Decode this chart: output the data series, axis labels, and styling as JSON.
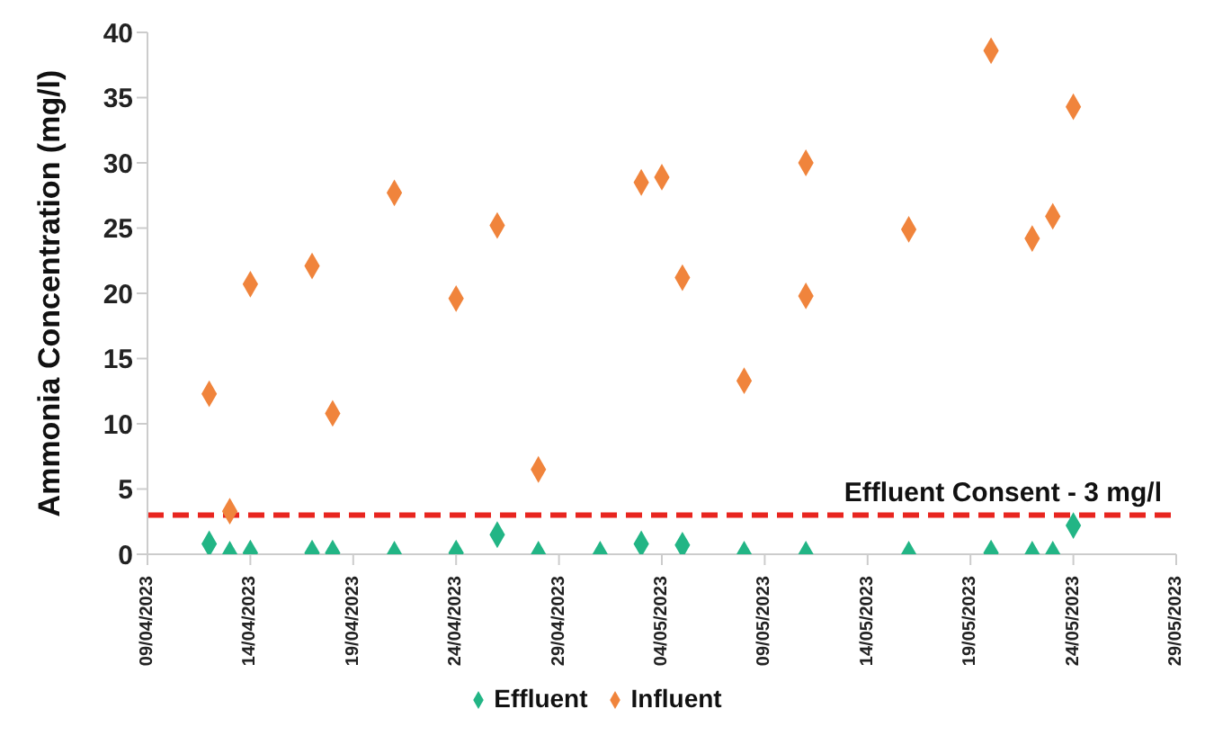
{
  "chart_data": {
    "type": "scatter",
    "ylabel": "Ammonia Concentration (mg/l)",
    "xlim": [
      "2023-04-09",
      "2023-05-29"
    ],
    "xticks": [
      {
        "value": "2023-04-09",
        "label": "09/04/2023"
      },
      {
        "value": "2023-04-14",
        "label": "14/04/2023"
      },
      {
        "value": "2023-04-19",
        "label": "19/04/2023"
      },
      {
        "value": "2023-04-24",
        "label": "24/04/2023"
      },
      {
        "value": "2023-04-29",
        "label": "29/04/2023"
      },
      {
        "value": "2023-05-04",
        "label": "04/05/2023"
      },
      {
        "value": "2023-05-09",
        "label": "09/05/2023"
      },
      {
        "value": "2023-05-14",
        "label": "14/05/2023"
      },
      {
        "value": "2023-05-19",
        "label": "19/05/2023"
      },
      {
        "value": "2023-05-24",
        "label": "24/05/2023"
      },
      {
        "value": "2023-05-29",
        "label": "29/05/2023"
      }
    ],
    "ylim": [
      0,
      40
    ],
    "yticks": [
      0,
      5,
      10,
      15,
      20,
      25,
      30,
      35,
      40
    ],
    "series": [
      {
        "name": "Influent",
        "color": "#f0843c",
        "x": [
          "2023-04-12",
          "2023-04-13",
          "2023-04-14",
          "2023-04-17",
          "2023-04-18",
          "2023-04-21",
          "2023-04-24",
          "2023-04-26",
          "2023-04-28",
          "2023-05-03",
          "2023-05-04",
          "2023-05-05",
          "2023-05-08",
          "2023-05-11",
          "2023-05-11",
          "2023-05-16",
          "2023-05-20",
          "2023-05-22",
          "2023-05-23",
          "2023-05-24"
        ],
        "values": [
          12.3,
          3.3,
          20.7,
          22.1,
          10.8,
          27.7,
          19.6,
          25.2,
          6.5,
          28.5,
          28.9,
          21.2,
          13.3,
          30.0,
          19.8,
          24.9,
          38.6,
          24.2,
          25.9,
          34.3
        ]
      },
      {
        "name": "Effluent",
        "color": "#22b585",
        "x": [
          "2023-04-12",
          "2023-04-13",
          "2023-04-14",
          "2023-04-17",
          "2023-04-18",
          "2023-04-21",
          "2023-04-24",
          "2023-04-26",
          "2023-04-28",
          "2023-05-01",
          "2023-05-03",
          "2023-05-05",
          "2023-05-08",
          "2023-05-11",
          "2023-05-16",
          "2023-05-20",
          "2023-05-22",
          "2023-05-23",
          "2023-05-24"
        ],
        "values": [
          0.8,
          0,
          0.1,
          0.1,
          0.1,
          0,
          0.1,
          1.5,
          0,
          0,
          0.8,
          0.7,
          0,
          0,
          0,
          0.1,
          0,
          0,
          2.2
        ]
      }
    ],
    "ref_lines": [
      {
        "axis": "y",
        "value": 3,
        "label": "Effluent Consent - 3 mg/l",
        "color": "#e8251f",
        "line_style": "dashed"
      }
    ],
    "grid": false,
    "legend": "bottom",
    "marker": "diamond"
  }
}
